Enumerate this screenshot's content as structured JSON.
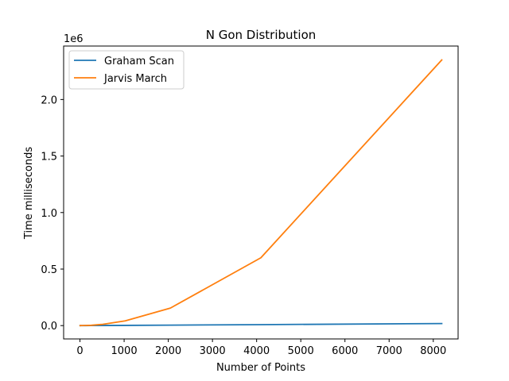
{
  "chart_data": {
    "type": "line",
    "title": "N Gon Distribution",
    "xlabel": "Number of Points",
    "ylabel": "Time milliseconds",
    "y_offset_label": "1e6",
    "y_scale_factor": 1000000,
    "xlim": [
      -370,
      8562
    ],
    "ylim": [
      -118000,
      2473000
    ],
    "xticks": [
      0,
      1000,
      2000,
      3000,
      4000,
      5000,
      6000,
      7000,
      8000
    ],
    "xtick_labels": [
      "0",
      "1000",
      "2000",
      "3000",
      "4000",
      "5000",
      "6000",
      "7000",
      "8000"
    ],
    "yticks": [
      0,
      500000,
      1000000,
      1500000,
      2000000
    ],
    "ytick_labels": [
      "0.0",
      "0.5",
      "1.0",
      "1.5",
      "2.0"
    ],
    "grid": false,
    "legend_position": "upper left",
    "series": [
      {
        "name": "Graham Scan",
        "color": "#1f77b4",
        "x": [
          4,
          8,
          16,
          32,
          64,
          128,
          256,
          512,
          1024,
          2048,
          4096,
          8192
        ],
        "y": [
          0,
          0,
          0,
          0,
          100,
          200,
          400,
          900,
          1900,
          4000,
          8500,
          18000
        ]
      },
      {
        "name": "Jarvis March",
        "color": "#ff7f0e",
        "x": [
          4,
          8,
          16,
          32,
          64,
          128,
          256,
          512,
          1024,
          2048,
          4096,
          8192
        ],
        "y": [
          0,
          0,
          100,
          300,
          600,
          1300,
          2800,
          11000,
          42000,
          155000,
          600000,
          2350000
        ]
      }
    ]
  }
}
